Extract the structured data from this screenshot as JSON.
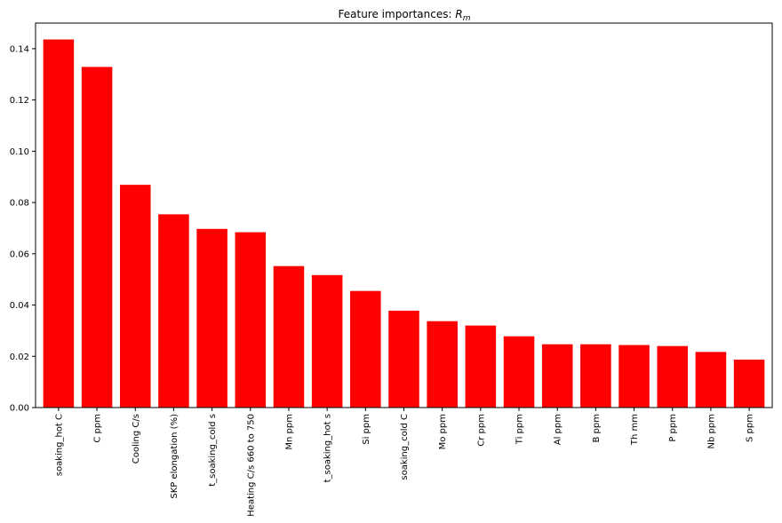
{
  "chart_data": {
    "type": "bar",
    "title": "Feature importances: ",
    "title_math": "R",
    "title_math_sub": "m",
    "xlabel": "",
    "ylabel": "",
    "ylim": [
      0,
      0.15
    ],
    "yticks": [
      0.0,
      0.02,
      0.04,
      0.06,
      0.08,
      0.1,
      0.12,
      0.14
    ],
    "ytick_labels": [
      "0.00",
      "0.02",
      "0.04",
      "0.06",
      "0.08",
      "0.10",
      "0.12",
      "0.14"
    ],
    "grid": false,
    "bar_color": "#ff0000",
    "categories": [
      "soaking_hot C",
      "C ppm",
      "Cooling C/s",
      "SKP elongation (%)",
      "t_soaking_cold s",
      "Heating C/s 660 to 750",
      "Mn ppm",
      "t_soaking_hot s",
      "Si ppm",
      "soaking_cold C",
      "Mo ppm",
      "Cr ppm",
      "Ti ppm",
      "Al ppm",
      "B ppm",
      "Th mm",
      "P ppm",
      "Nb ppm",
      "S ppm"
    ],
    "values": [
      0.1436,
      0.1329,
      0.0869,
      0.0754,
      0.0697,
      0.0684,
      0.0552,
      0.0517,
      0.0455,
      0.0378,
      0.0337,
      0.032,
      0.0278,
      0.0247,
      0.0247,
      0.0244,
      0.024,
      0.0217,
      0.0187
    ]
  }
}
